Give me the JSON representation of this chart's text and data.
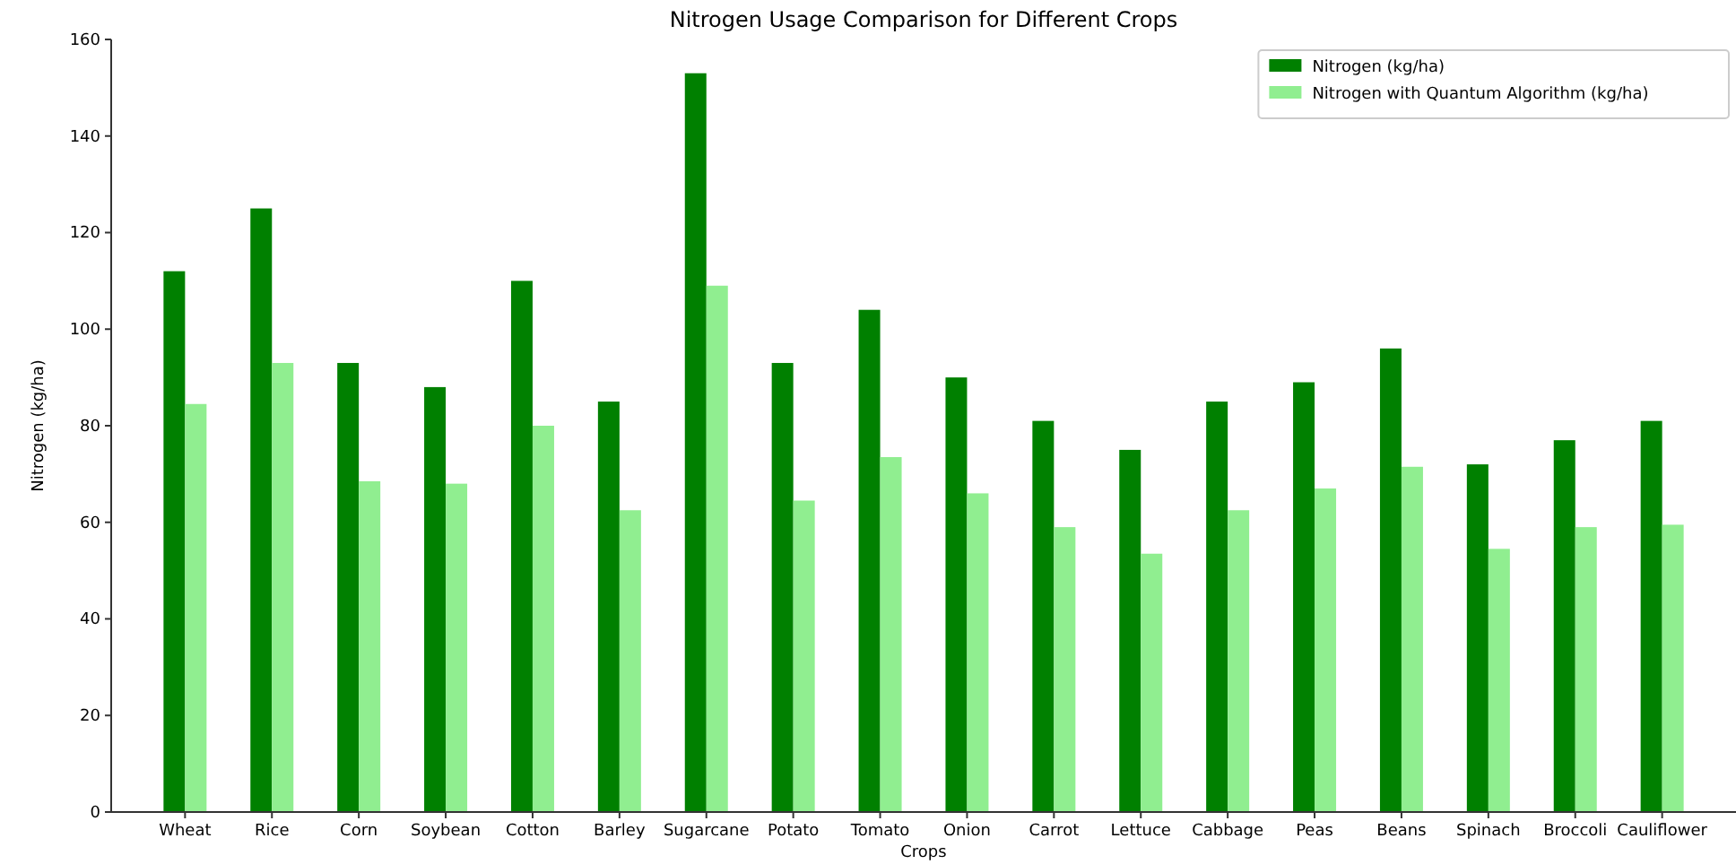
{
  "chart_data": {
    "type": "bar",
    "title": "Nitrogen Usage Comparison for Different Crops",
    "xlabel": "Crops",
    "ylabel": "Nitrogen (kg/ha)",
    "categories": [
      "Wheat",
      "Rice",
      "Corn",
      "Soybean",
      "Cotton",
      "Barley",
      "Sugarcane",
      "Potato",
      "Tomato",
      "Onion",
      "Carrot",
      "Lettuce",
      "Cabbage",
      "Peas",
      "Beans",
      "Spinach",
      "Broccoli",
      "Cauliflower"
    ],
    "series": [
      {
        "name": "Nitrogen (kg/ha)",
        "color": "#008000",
        "values": [
          112,
          125,
          93,
          88,
          110,
          85,
          153,
          93,
          104,
          90,
          81,
          75,
          85,
          89,
          96,
          72,
          77,
          81
        ]
      },
      {
        "name": "Nitrogen with Quantum Algorithm (kg/ha)",
        "color": "#90ee90",
        "values": [
          84.5,
          93,
          68.5,
          68,
          80,
          62.5,
          109,
          64.5,
          73.5,
          66,
          59,
          53.5,
          62.5,
          67,
          71.5,
          54.5,
          59,
          59.5
        ]
      }
    ],
    "ylim": [
      0,
      160
    ],
    "yticks": [
      0,
      20,
      40,
      60,
      80,
      100,
      120,
      140,
      160
    ],
    "legend": "top right"
  }
}
